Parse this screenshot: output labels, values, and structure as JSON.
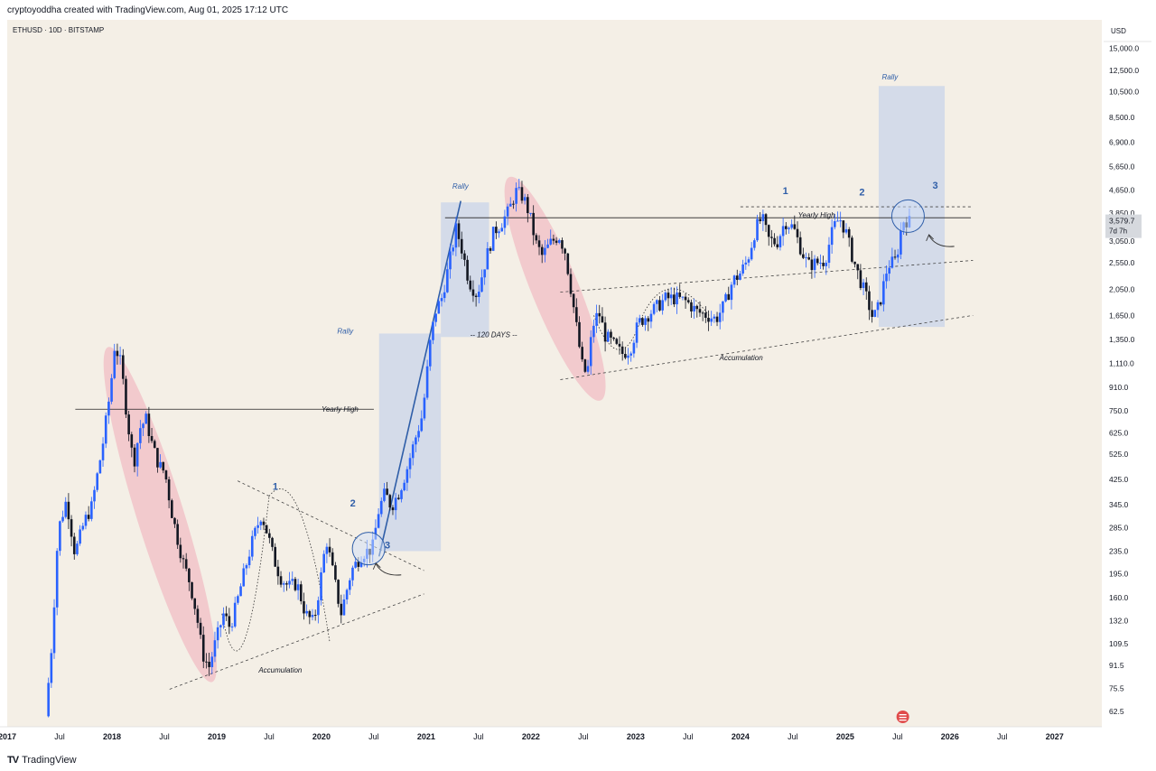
{
  "header": {
    "credit": "cryptoyoddha created with TradingView.com, Aug 01, 2025 17:12 UTC"
  },
  "footer": {
    "brand": "TradingView",
    "brand_mark": "TV"
  },
  "chart_data": {
    "type": "candlestick",
    "symbol_label": "ETHUSD · 10D · BITSTAMP",
    "currency": "USD",
    "scale": "log",
    "ylim": [
      55,
      19000
    ],
    "xlim": [
      2017.0,
      2027.45
    ],
    "price_ticks": [
      "15,000.0",
      "12,500.0",
      "10,500.0",
      "8,500.0",
      "6,900.0",
      "5,650.0",
      "4,650.0",
      "3,850.0",
      "3,050.0",
      "2,550.0",
      "2,050.0",
      "1,650.0",
      "1,350.0",
      "1,110.0",
      "910.0",
      "750.0",
      "625.0",
      "525.0",
      "425.0",
      "345.0",
      "285.0",
      "235.0",
      "195.0",
      "160.0",
      "132.0",
      "109.5",
      "91.5",
      "75.5",
      "62.5"
    ],
    "time_ticks": [
      {
        "t": 2017.0,
        "label": "2017",
        "bold": true
      },
      {
        "t": 2017.5,
        "label": "Jul",
        "bold": false
      },
      {
        "t": 2018.0,
        "label": "2018",
        "bold": true
      },
      {
        "t": 2018.5,
        "label": "Jul",
        "bold": false
      },
      {
        "t": 2019.0,
        "label": "2019",
        "bold": true
      },
      {
        "t": 2019.5,
        "label": "Jul",
        "bold": false
      },
      {
        "t": 2020.0,
        "label": "2020",
        "bold": true
      },
      {
        "t": 2020.5,
        "label": "Jul",
        "bold": false
      },
      {
        "t": 2021.0,
        "label": "2021",
        "bold": true
      },
      {
        "t": 2021.5,
        "label": "Jul",
        "bold": false
      },
      {
        "t": 2022.0,
        "label": "2022",
        "bold": true
      },
      {
        "t": 2022.5,
        "label": "Jul",
        "bold": false
      },
      {
        "t": 2023.0,
        "label": "2023",
        "bold": true
      },
      {
        "t": 2023.5,
        "label": "Jul",
        "bold": false
      },
      {
        "t": 2024.0,
        "label": "2024",
        "bold": true
      },
      {
        "t": 2024.5,
        "label": "Jul",
        "bold": false
      },
      {
        "t": 2025.0,
        "label": "2025",
        "bold": true
      },
      {
        "t": 2025.5,
        "label": "Jul",
        "bold": false
      },
      {
        "t": 2026.0,
        "label": "2026",
        "bold": true
      },
      {
        "t": 2026.5,
        "label": "Jul",
        "bold": false
      },
      {
        "t": 2027.0,
        "label": "2027",
        "bold": true
      }
    ],
    "last_price": {
      "label": "3,579.7",
      "countdown": "7d 7h",
      "value": 3580
    },
    "price_path": [
      [
        2017.38,
        60
      ],
      [
        2017.44,
        110
      ],
      [
        2017.5,
        280
      ],
      [
        2017.58,
        360
      ],
      [
        2017.66,
        230
      ],
      [
        2017.75,
        300
      ],
      [
        2017.82,
        340
      ],
      [
        2017.92,
        550
      ],
      [
        2018.0,
        900
      ],
      [
        2018.04,
        1300
      ],
      [
        2018.1,
        1100
      ],
      [
        2018.16,
        700
      ],
      [
        2018.22,
        480
      ],
      [
        2018.28,
        650
      ],
      [
        2018.34,
        700
      ],
      [
        2018.4,
        560
      ],
      [
        2018.46,
        480
      ],
      [
        2018.52,
        450
      ],
      [
        2018.58,
        330
      ],
      [
        2018.64,
        260
      ],
      [
        2018.7,
        210
      ],
      [
        2018.76,
        180
      ],
      [
        2018.82,
        140
      ],
      [
        2018.88,
        100
      ],
      [
        2018.94,
        90
      ],
      [
        2019.0,
        110
      ],
      [
        2019.08,
        140
      ],
      [
        2019.14,
        125
      ],
      [
        2019.2,
        150
      ],
      [
        2019.28,
        200
      ],
      [
        2019.36,
        260
      ],
      [
        2019.44,
        320
      ],
      [
        2019.5,
        270
      ],
      [
        2019.56,
        220
      ],
      [
        2019.62,
        190
      ],
      [
        2019.7,
        175
      ],
      [
        2019.78,
        180
      ],
      [
        2019.86,
        140
      ],
      [
        2019.94,
        130
      ],
      [
        2020.0,
        180
      ],
      [
        2020.06,
        260
      ],
      [
        2020.12,
        200
      ],
      [
        2020.2,
        140
      ],
      [
        2020.3,
        200
      ],
      [
        2020.4,
        230
      ],
      [
        2020.5,
        240
      ],
      [
        2020.56,
        330
      ],
      [
        2020.62,
        380
      ],
      [
        2020.68,
        340
      ],
      [
        2020.75,
        380
      ],
      [
        2020.82,
        450
      ],
      [
        2020.9,
        580
      ],
      [
        2020.98,
        730
      ],
      [
        2021.05,
        1300
      ],
      [
        2021.1,
        1700
      ],
      [
        2021.16,
        1900
      ],
      [
        2021.22,
        2400
      ],
      [
        2021.3,
        3400
      ],
      [
        2021.36,
        2800
      ],
      [
        2021.42,
        2200
      ],
      [
        2021.5,
        1950
      ],
      [
        2021.58,
        2600
      ],
      [
        2021.66,
        3300
      ],
      [
        2021.72,
        3500
      ],
      [
        2021.8,
        3900
      ],
      [
        2021.87,
        4600
      ],
      [
        2021.94,
        4400
      ],
      [
        2022.0,
        3800
      ],
      [
        2022.06,
        3000
      ],
      [
        2022.12,
        2700
      ],
      [
        2022.2,
        3000
      ],
      [
        2022.28,
        3200
      ],
      [
        2022.34,
        2800
      ],
      [
        2022.4,
        2000
      ],
      [
        2022.46,
        1400
      ],
      [
        2022.5,
        1100
      ],
      [
        2022.55,
        1000
      ],
      [
        2022.6,
        1500
      ],
      [
        2022.66,
        1700
      ],
      [
        2022.72,
        1400
      ],
      [
        2022.8,
        1300
      ],
      [
        2022.88,
        1200
      ],
      [
        2022.96,
        1250
      ],
      [
        2023.04,
        1550
      ],
      [
        2023.12,
        1650
      ],
      [
        2023.2,
        1750
      ],
      [
        2023.3,
        1900
      ],
      [
        2023.4,
        1900
      ],
      [
        2023.5,
        1850
      ],
      [
        2023.6,
        1700
      ],
      [
        2023.7,
        1650
      ],
      [
        2023.78,
        1600
      ],
      [
        2023.86,
        1800
      ],
      [
        2023.94,
        2200
      ],
      [
        2024.0,
        2300
      ],
      [
        2024.08,
        2600
      ],
      [
        2024.16,
        3400
      ],
      [
        2024.22,
        3700
      ],
      [
        2024.28,
        3100
      ],
      [
        2024.36,
        3000
      ],
      [
        2024.44,
        3600
      ],
      [
        2024.52,
        3400
      ],
      [
        2024.6,
        2800
      ],
      [
        2024.66,
        2500
      ],
      [
        2024.74,
        2550
      ],
      [
        2024.82,
        2600
      ],
      [
        2024.9,
        3400
      ],
      [
        2024.96,
        3700
      ],
      [
        2025.02,
        3300
      ],
      [
        2025.08,
        2700
      ],
      [
        2025.14,
        2300
      ],
      [
        2025.22,
        1900
      ],
      [
        2025.28,
        1600
      ],
      [
        2025.34,
        1800
      ],
      [
        2025.42,
        2500
      ],
      [
        2025.5,
        2600
      ],
      [
        2025.56,
        3600
      ],
      [
        2025.59,
        3650
      ],
      [
        2025.62,
        3580
      ]
    ],
    "annotations": [
      {
        "kind": "text",
        "text": "Rally",
        "t": 2021.25,
        "p": 4700
      },
      {
        "kind": "text",
        "text": "Rally",
        "t": 2020.15,
        "p": 1420
      },
      {
        "kind": "text",
        "text": "Rally",
        "t": 2025.35,
        "p": 11600
      },
      {
        "kind": "text",
        "text": "-- 120 DAYS --",
        "t": 2021.42,
        "p": 1380
      },
      {
        "kind": "text",
        "text": "Yearly High",
        "t": 2024.55,
        "p": 3700
      },
      {
        "kind": "text",
        "text": "Yearly High",
        "t": 2020.0,
        "p": 745
      },
      {
        "kind": "text",
        "text": "Accumulation",
        "t": 2023.8,
        "p": 1140
      },
      {
        "kind": "text",
        "text": "Accumulation",
        "t": 2019.4,
        "p": 86
      },
      {
        "kind": "wave",
        "text": "1",
        "t": 2019.56,
        "p": 390
      },
      {
        "kind": "wave",
        "text": "2",
        "t": 2020.3,
        "p": 340
      },
      {
        "kind": "wave",
        "text": "3",
        "t": 2020.63,
        "p": 240
      },
      {
        "kind": "wave",
        "text": "1",
        "t": 2024.43,
        "p": 4500
      },
      {
        "kind": "wave",
        "text": "2",
        "t": 2025.16,
        "p": 4450
      },
      {
        "kind": "wave",
        "text": "3",
        "t": 2025.86,
        "p": 4700
      }
    ],
    "levels": [
      {
        "name": "yearly-high-2018",
        "p": 760,
        "t0": 2017.65,
        "t1": 2020.5
      },
      {
        "name": "yearly-high-2021",
        "p": 3700,
        "t0": 2021.18,
        "t1": 2026.2
      }
    ],
    "rally_boxes": [
      {
        "t0": 2020.55,
        "t1": 2021.14,
        "p0": 235,
        "p1": 1420
      },
      {
        "t0": 2021.14,
        "t1": 2021.6,
        "p0": 1380,
        "p1": 4200
      },
      {
        "t0": 2025.32,
        "t1": 2025.95,
        "p0": 1500,
        "p1": 11000
      }
    ],
    "colors": {
      "up": "#2962ff",
      "down": "#131722",
      "bg": "#f4efe6",
      "rally": "#c9d4ea",
      "ellipse": "#f1c3c8",
      "accent": "#2f5ea8"
    }
  }
}
